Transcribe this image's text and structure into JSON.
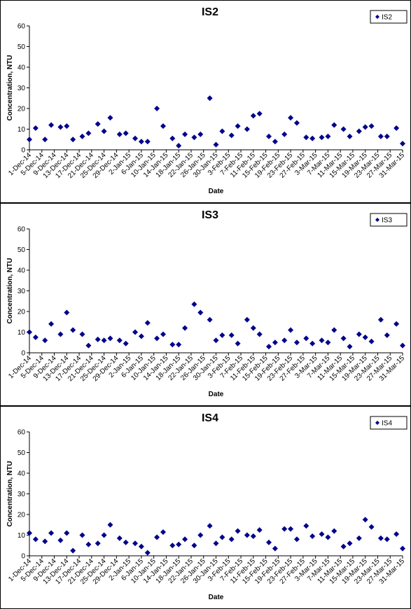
{
  "chart_data": [
    {
      "type": "scatter",
      "title": "IS2",
      "x_label": "Date",
      "y_label": "Concentration, NTU",
      "color": "#00008b",
      "legend": "top-right",
      "series": [
        {
          "name": "IS2",
          "color": "#00008b",
          "x": [
            "1-Dec-14",
            "3-Dec-14",
            "6-Dec-14",
            "8-Dec-14",
            "11-Dec-14",
            "13-Dec-14",
            "15-Dec-14",
            "18-Dec-14",
            "20-Dec-14",
            "23-Dec-14",
            "25-Dec-14",
            "27-Dec-14",
            "30-Dec-14",
            "1-Jan-15",
            "4-Jan-15",
            "6-Jan-15",
            "8-Jan-15",
            "11-Jan-15",
            "13-Jan-15",
            "16-Jan-15",
            "18-Jan-15",
            "20-Jan-15",
            "23-Jan-15",
            "25-Jan-15",
            "28-Jan-15",
            "30-Jan-15",
            "1-Feb-15",
            "4-Feb-15",
            "6-Feb-15",
            "9-Feb-15",
            "11-Feb-15",
            "13-Feb-15",
            "16-Feb-15",
            "18-Feb-15",
            "21-Feb-15",
            "23-Feb-15",
            "25-Feb-15",
            "28-Feb-15",
            "2-Mar-15",
            "5-Mar-15",
            "7-Mar-15",
            "9-Mar-15",
            "12-Mar-15",
            "14-Mar-15",
            "17-Mar-15",
            "19-Mar-15",
            "21-Mar-15",
            "24-Mar-15",
            "26-Mar-15",
            "29-Mar-15",
            "31-Mar-15"
          ],
          "values": [
            5,
            10.5,
            5,
            12,
            11,
            11.5,
            5,
            6.5,
            8,
            12.5,
            9,
            15.5,
            7.5,
            8,
            5.5,
            4,
            4,
            20,
            11.5,
            5.5,
            2,
            7.5,
            6,
            7.5,
            25,
            2.5,
            9,
            7,
            11.5,
            10,
            16.5,
            17.5,
            6.5,
            4,
            7.5,
            15.5,
            13,
            6,
            5.5,
            6,
            6.5,
            12,
            10,
            6.5,
            9,
            11,
            11.5,
            6.5,
            6.5,
            10.5,
            3
          ]
        }
      ],
      "xlim": [
        "1-Dec-14",
        "31-Mar-15"
      ],
      "xticks": [
        "1-Dec-14",
        "5-Dec-14",
        "9-Dec-14",
        "13-Dec-14",
        "17-Dec-14",
        "21-Dec-14",
        "25-Dec-14",
        "29-Dec-14",
        "2-Jan-15",
        "6-Jan-15",
        "10-Jan-15",
        "14-Jan-15",
        "18-Jan-15",
        "22-Jan-15",
        "26-Jan-15",
        "30-Jan-15",
        "3-Feb-15",
        "7-Feb-15",
        "11-Feb-15",
        "15-Feb-15",
        "19-Feb-15",
        "23-Feb-15",
        "27-Feb-15",
        "3-Mar-15",
        "7-Mar-15",
        "11-Mar-15",
        "15-Mar-15",
        "19-Mar-15",
        "23-Mar-15",
        "27-Mar-15",
        "31-Mar-15"
      ],
      "ylim": [
        0,
        60
      ],
      "yticks": [
        0,
        10,
        20,
        30,
        40,
        50,
        60
      ]
    },
    {
      "type": "scatter",
      "title": "IS3",
      "x_label": "Date",
      "y_label": "Concentration, NTU",
      "color": "#00008b",
      "legend": "top-right",
      "series": [
        {
          "name": "IS3",
          "color": "#00008b",
          "x": [
            "1-Dec-14",
            "3-Dec-14",
            "6-Dec-14",
            "8-Dec-14",
            "11-Dec-14",
            "13-Dec-14",
            "15-Dec-14",
            "18-Dec-14",
            "20-Dec-14",
            "23-Dec-14",
            "25-Dec-14",
            "27-Dec-14",
            "30-Dec-14",
            "1-Jan-15",
            "4-Jan-15",
            "6-Jan-15",
            "8-Jan-15",
            "11-Jan-15",
            "13-Jan-15",
            "16-Jan-15",
            "18-Jan-15",
            "20-Jan-15",
            "23-Jan-15",
            "25-Jan-15",
            "28-Jan-15",
            "30-Jan-15",
            "1-Feb-15",
            "4-Feb-15",
            "6-Feb-15",
            "9-Feb-15",
            "11-Feb-15",
            "13-Feb-15",
            "16-Feb-15",
            "18-Feb-15",
            "21-Feb-15",
            "23-Feb-15",
            "25-Feb-15",
            "28-Feb-15",
            "2-Mar-15",
            "5-Mar-15",
            "7-Mar-15",
            "9-Mar-15",
            "12-Mar-15",
            "14-Mar-15",
            "17-Mar-15",
            "19-Mar-15",
            "21-Mar-15",
            "24-Mar-15",
            "26-Mar-15",
            "29-Mar-15",
            "31-Mar-15"
          ],
          "values": [
            10,
            7.5,
            6,
            14,
            9,
            19.5,
            11,
            9,
            3.5,
            6.5,
            6,
            7,
            6,
            4.5,
            10,
            8,
            14.5,
            7,
            9,
            4,
            4,
            12,
            23.5,
            19.5,
            16,
            6,
            8.5,
            8.5,
            4.5,
            16,
            12,
            9,
            3,
            5,
            6,
            11,
            5,
            7,
            4.5,
            6,
            5,
            11,
            7,
            3,
            9,
            7.5,
            5.5,
            16,
            8.5,
            14,
            3.5
          ]
        }
      ],
      "xlim": [
        "1-Dec-14",
        "31-Mar-15"
      ],
      "xticks": [
        "1-Dec-14",
        "5-Dec-14",
        "9-Dec-14",
        "13-Dec-14",
        "17-Dec-14",
        "21-Dec-14",
        "25-Dec-14",
        "29-Dec-14",
        "2-Jan-15",
        "6-Jan-15",
        "10-Jan-15",
        "14-Jan-15",
        "18-Jan-15",
        "22-Jan-15",
        "26-Jan-15",
        "30-Jan-15",
        "3-Feb-15",
        "7-Feb-15",
        "11-Feb-15",
        "15-Feb-15",
        "19-Feb-15",
        "23-Feb-15",
        "27-Feb-15",
        "3-Mar-15",
        "7-Mar-15",
        "11-Mar-15",
        "15-Mar-15",
        "19-Mar-15",
        "23-Mar-15",
        "27-Mar-15",
        "31-Mar-15"
      ],
      "ylim": [
        0,
        60
      ],
      "yticks": [
        0,
        10,
        20,
        30,
        40,
        50,
        60
      ]
    },
    {
      "type": "scatter",
      "title": "IS4",
      "x_label": "Date",
      "y_label": "Concentration, NTU",
      "color": "#00008b",
      "legend": "top-right",
      "series": [
        {
          "name": "IS4",
          "color": "#00008b",
          "x": [
            "1-Dec-14",
            "3-Dec-14",
            "6-Dec-14",
            "8-Dec-14",
            "11-Dec-14",
            "13-Dec-14",
            "15-Dec-14",
            "18-Dec-14",
            "20-Dec-14",
            "23-Dec-14",
            "25-Dec-14",
            "27-Dec-14",
            "30-Dec-14",
            "1-Jan-15",
            "4-Jan-15",
            "6-Jan-15",
            "8-Jan-15",
            "11-Jan-15",
            "13-Jan-15",
            "16-Jan-15",
            "18-Jan-15",
            "20-Jan-15",
            "23-Jan-15",
            "25-Jan-15",
            "28-Jan-15",
            "30-Jan-15",
            "1-Feb-15",
            "4-Feb-15",
            "6-Feb-15",
            "9-Feb-15",
            "11-Feb-15",
            "13-Feb-15",
            "16-Feb-15",
            "18-Feb-15",
            "21-Feb-15",
            "23-Feb-15",
            "25-Feb-15",
            "28-Feb-15",
            "2-Mar-15",
            "5-Mar-15",
            "7-Mar-15",
            "9-Mar-15",
            "12-Mar-15",
            "14-Mar-15",
            "17-Mar-15",
            "19-Mar-15",
            "21-Mar-15",
            "24-Mar-15",
            "26-Mar-15",
            "29-Mar-15",
            "31-Mar-15"
          ],
          "values": [
            11,
            8,
            7,
            11,
            7.5,
            11,
            2.5,
            10,
            5.5,
            6,
            10,
            15,
            8.5,
            6.5,
            6,
            4.5,
            1.5,
            9,
            11.5,
            5,
            5.5,
            8,
            5,
            10,
            14.5,
            6,
            9,
            8,
            12,
            10,
            9.5,
            12.5,
            6.5,
            3.5,
            13,
            13,
            8,
            14.5,
            9.5,
            10.5,
            9,
            12,
            4.5,
            6,
            8.5,
            17.5,
            14,
            8.5,
            8,
            10.5,
            3.5
          ]
        }
      ],
      "xlim": [
        "1-Dec-14",
        "31-Mar-15"
      ],
      "xticks": [
        "1-Dec-14",
        "5-Dec-14",
        "9-Dec-14",
        "13-Dec-14",
        "17-Dec-14",
        "21-Dec-14",
        "25-Dec-14",
        "29-Dec-14",
        "2-Jan-15",
        "6-Jan-15",
        "10-Jan-15",
        "14-Jan-15",
        "18-Jan-15",
        "22-Jan-15",
        "26-Jan-15",
        "30-Jan-15",
        "3-Feb-15",
        "7-Feb-15",
        "11-Feb-15",
        "15-Feb-15",
        "19-Feb-15",
        "23-Feb-15",
        "27-Feb-15",
        "3-Mar-15",
        "7-Mar-15",
        "11-Mar-15",
        "15-Mar-15",
        "19-Mar-15",
        "23-Mar-15",
        "27-Mar-15",
        "31-Mar-15"
      ],
      "ylim": [
        0,
        60
      ],
      "yticks": [
        0,
        10,
        20,
        30,
        40,
        50,
        60
      ]
    }
  ]
}
